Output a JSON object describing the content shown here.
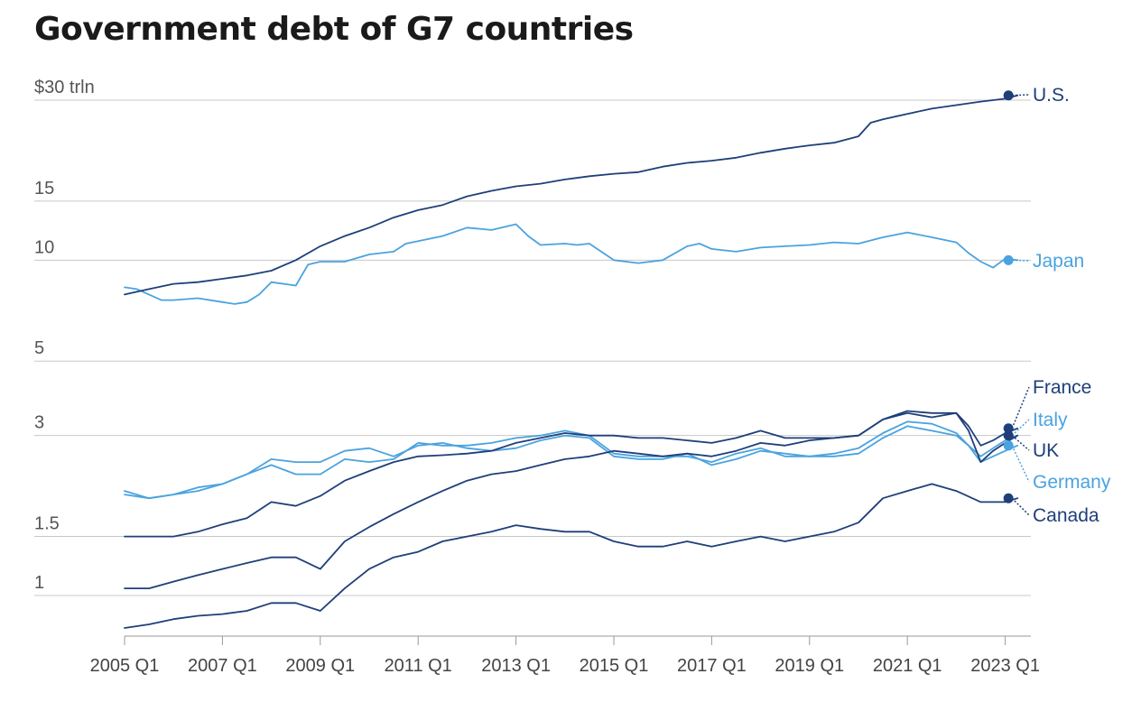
{
  "title": "Government debt of G7 countries",
  "colors": {
    "dark": "#1f3f7a",
    "light": "#4aa3df",
    "grid": "#c8c8c8",
    "text": "#1a1a1a"
  },
  "chart_data": {
    "type": "line",
    "title": "Government debt of G7 countries",
    "xlabel": "",
    "ylabel": "",
    "yscale": "log",
    "unit": "$ trillion",
    "ylim": [
      0.8,
      30.5
    ],
    "y_ticks": [
      {
        "value": 30,
        "label": "$30 trln"
      },
      {
        "value": 15,
        "label": "15"
      },
      {
        "value": 10,
        "label": "10"
      },
      {
        "value": 5,
        "label": "5"
      },
      {
        "value": 3,
        "label": "3"
      },
      {
        "value": 1.5,
        "label": "1.5"
      },
      {
        "value": 1,
        "label": "1"
      }
    ],
    "x_ticks": [
      "2005 Q1",
      "2007 Q1",
      "2009 Q1",
      "2011 Q1",
      "2013 Q1",
      "2015 Q1",
      "2017 Q1",
      "2019 Q1",
      "2021 Q1",
      "2023 Q1"
    ],
    "x_start_year": 2005,
    "series": [
      {
        "name": "U.S.",
        "color": "#1f3f7a",
        "points": [
          [
            2005.0,
            7.9
          ],
          [
            2005.5,
            8.2
          ],
          [
            2006.0,
            8.5
          ],
          [
            2006.5,
            8.6
          ],
          [
            2007.0,
            8.8
          ],
          [
            2007.5,
            9.0
          ],
          [
            2008.0,
            9.3
          ],
          [
            2008.5,
            10.0
          ],
          [
            2009.0,
            11.0
          ],
          [
            2009.5,
            11.8
          ],
          [
            2010.0,
            12.5
          ],
          [
            2010.5,
            13.4
          ],
          [
            2011.0,
            14.1
          ],
          [
            2011.5,
            14.6
          ],
          [
            2012.0,
            15.5
          ],
          [
            2012.5,
            16.1
          ],
          [
            2013.0,
            16.6
          ],
          [
            2013.5,
            16.9
          ],
          [
            2014.0,
            17.4
          ],
          [
            2014.5,
            17.8
          ],
          [
            2015.0,
            18.1
          ],
          [
            2015.5,
            18.3
          ],
          [
            2016.0,
            19.0
          ],
          [
            2016.5,
            19.5
          ],
          [
            2017.0,
            19.8
          ],
          [
            2017.5,
            20.2
          ],
          [
            2018.0,
            20.9
          ],
          [
            2018.5,
            21.5
          ],
          [
            2019.0,
            22.0
          ],
          [
            2019.5,
            22.4
          ],
          [
            2020.0,
            23.4
          ],
          [
            2020.25,
            25.7
          ],
          [
            2020.5,
            26.3
          ],
          [
            2021.0,
            27.3
          ],
          [
            2021.5,
            28.3
          ],
          [
            2022.0,
            29.0
          ],
          [
            2022.5,
            29.7
          ],
          [
            2023.0,
            30.3
          ],
          [
            2023.25,
            31.0
          ]
        ]
      },
      {
        "name": "Japan",
        "color": "#4aa3df",
        "points": [
          [
            2005.0,
            8.3
          ],
          [
            2005.25,
            8.2
          ],
          [
            2005.75,
            7.6
          ],
          [
            2006.0,
            7.6
          ],
          [
            2006.5,
            7.7
          ],
          [
            2007.0,
            7.5
          ],
          [
            2007.25,
            7.4
          ],
          [
            2007.5,
            7.5
          ],
          [
            2007.75,
            7.9
          ],
          [
            2008.0,
            8.6
          ],
          [
            2008.5,
            8.4
          ],
          [
            2008.75,
            9.7
          ],
          [
            2009.0,
            9.9
          ],
          [
            2009.5,
            9.9
          ],
          [
            2010.0,
            10.4
          ],
          [
            2010.5,
            10.6
          ],
          [
            2010.75,
            11.2
          ],
          [
            2011.0,
            11.4
          ],
          [
            2011.5,
            11.8
          ],
          [
            2012.0,
            12.5
          ],
          [
            2012.5,
            12.3
          ],
          [
            2013.0,
            12.8
          ],
          [
            2013.25,
            11.8
          ],
          [
            2013.5,
            11.1
          ],
          [
            2014.0,
            11.2
          ],
          [
            2014.25,
            11.1
          ],
          [
            2014.5,
            11.2
          ],
          [
            2015.0,
            10.0
          ],
          [
            2015.5,
            9.8
          ],
          [
            2016.0,
            10.0
          ],
          [
            2016.5,
            11.0
          ],
          [
            2016.75,
            11.2
          ],
          [
            2017.0,
            10.8
          ],
          [
            2017.5,
            10.6
          ],
          [
            2018.0,
            10.9
          ],
          [
            2018.5,
            11.0
          ],
          [
            2019.0,
            11.1
          ],
          [
            2019.5,
            11.3
          ],
          [
            2020.0,
            11.2
          ],
          [
            2020.5,
            11.7
          ],
          [
            2021.0,
            12.1
          ],
          [
            2021.5,
            11.7
          ],
          [
            2022.0,
            11.3
          ],
          [
            2022.25,
            10.5
          ],
          [
            2022.5,
            9.9
          ],
          [
            2022.75,
            9.5
          ],
          [
            2023.0,
            10.1
          ],
          [
            2023.25,
            10.0
          ]
        ]
      },
      {
        "name": "France",
        "color": "#1f3f7a",
        "points": [
          [
            2005.0,
            1.5
          ],
          [
            2005.5,
            1.5
          ],
          [
            2006.0,
            1.5
          ],
          [
            2006.5,
            1.55
          ],
          [
            2007.0,
            1.63
          ],
          [
            2007.5,
            1.7
          ],
          [
            2008.0,
            1.9
          ],
          [
            2008.5,
            1.85
          ],
          [
            2009.0,
            1.98
          ],
          [
            2009.5,
            2.2
          ],
          [
            2010.0,
            2.35
          ],
          [
            2010.5,
            2.5
          ],
          [
            2011.0,
            2.6
          ],
          [
            2011.5,
            2.62
          ],
          [
            2012.0,
            2.65
          ],
          [
            2012.5,
            2.7
          ],
          [
            2013.0,
            2.85
          ],
          [
            2013.5,
            2.95
          ],
          [
            2014.0,
            3.05
          ],
          [
            2014.5,
            3.0
          ],
          [
            2015.0,
            3.0
          ],
          [
            2015.5,
            2.95
          ],
          [
            2016.0,
            2.95
          ],
          [
            2016.5,
            2.9
          ],
          [
            2017.0,
            2.85
          ],
          [
            2017.5,
            2.95
          ],
          [
            2018.0,
            3.1
          ],
          [
            2018.5,
            2.95
          ],
          [
            2019.0,
            2.95
          ],
          [
            2019.5,
            2.95
          ],
          [
            2020.0,
            3.0
          ],
          [
            2020.5,
            3.35
          ],
          [
            2021.0,
            3.5
          ],
          [
            2021.5,
            3.4
          ],
          [
            2022.0,
            3.5
          ],
          [
            2022.25,
            3.2
          ],
          [
            2022.5,
            2.8
          ],
          [
            2022.75,
            2.9
          ],
          [
            2023.0,
            3.05
          ],
          [
            2023.25,
            3.15
          ]
        ]
      },
      {
        "name": "Italy",
        "color": "#4aa3df",
        "points": [
          [
            2005.0,
            2.05
          ],
          [
            2005.5,
            1.95
          ],
          [
            2006.0,
            2.0
          ],
          [
            2006.5,
            2.05
          ],
          [
            2007.0,
            2.15
          ],
          [
            2007.5,
            2.3
          ],
          [
            2008.0,
            2.45
          ],
          [
            2008.5,
            2.3
          ],
          [
            2009.0,
            2.3
          ],
          [
            2009.5,
            2.55
          ],
          [
            2010.0,
            2.5
          ],
          [
            2010.5,
            2.55
          ],
          [
            2011.0,
            2.85
          ],
          [
            2011.5,
            2.8
          ],
          [
            2012.0,
            2.8
          ],
          [
            2012.5,
            2.85
          ],
          [
            2013.0,
            2.95
          ],
          [
            2013.5,
            3.0
          ],
          [
            2014.0,
            3.1
          ],
          [
            2014.5,
            3.0
          ],
          [
            2015.0,
            2.65
          ],
          [
            2015.5,
            2.6
          ],
          [
            2016.0,
            2.6
          ],
          [
            2016.5,
            2.6
          ],
          [
            2017.0,
            2.5
          ],
          [
            2017.5,
            2.65
          ],
          [
            2018.0,
            2.75
          ],
          [
            2018.5,
            2.6
          ],
          [
            2019.0,
            2.6
          ],
          [
            2019.5,
            2.65
          ],
          [
            2020.0,
            2.75
          ],
          [
            2020.5,
            3.05
          ],
          [
            2021.0,
            3.3
          ],
          [
            2021.5,
            3.25
          ],
          [
            2022.0,
            3.05
          ],
          [
            2022.25,
            2.8
          ],
          [
            2022.5,
            2.6
          ],
          [
            2022.75,
            2.75
          ],
          [
            2023.0,
            2.9
          ],
          [
            2023.25,
            3.0
          ]
        ]
      },
      {
        "name": "UK",
        "color": "#1f3f7a",
        "points": [
          [
            2005.0,
            1.05
          ],
          [
            2005.5,
            1.05
          ],
          [
            2006.0,
            1.1
          ],
          [
            2006.5,
            1.15
          ],
          [
            2007.0,
            1.2
          ],
          [
            2007.5,
            1.25
          ],
          [
            2008.0,
            1.3
          ],
          [
            2008.5,
            1.3
          ],
          [
            2009.0,
            1.2
          ],
          [
            2009.5,
            1.45
          ],
          [
            2010.0,
            1.6
          ],
          [
            2010.5,
            1.75
          ],
          [
            2011.0,
            1.9
          ],
          [
            2011.5,
            2.05
          ],
          [
            2012.0,
            2.2
          ],
          [
            2012.5,
            2.3
          ],
          [
            2013.0,
            2.35
          ],
          [
            2013.5,
            2.45
          ],
          [
            2014.0,
            2.55
          ],
          [
            2014.5,
            2.6
          ],
          [
            2015.0,
            2.7
          ],
          [
            2015.5,
            2.65
          ],
          [
            2016.0,
            2.6
          ],
          [
            2016.5,
            2.65
          ],
          [
            2017.0,
            2.6
          ],
          [
            2017.5,
            2.7
          ],
          [
            2018.0,
            2.85
          ],
          [
            2018.5,
            2.8
          ],
          [
            2019.0,
            2.9
          ],
          [
            2019.5,
            2.95
          ],
          [
            2020.0,
            3.0
          ],
          [
            2020.5,
            3.35
          ],
          [
            2021.0,
            3.55
          ],
          [
            2021.5,
            3.5
          ],
          [
            2022.0,
            3.5
          ],
          [
            2022.25,
            3.1
          ],
          [
            2022.5,
            2.5
          ],
          [
            2022.75,
            2.7
          ],
          [
            2023.0,
            2.85
          ],
          [
            2023.25,
            3.0
          ]
        ]
      },
      {
        "name": "Germany",
        "color": "#4aa3df",
        "points": [
          [
            2005.0,
            2.0
          ],
          [
            2005.5,
            1.95
          ],
          [
            2006.0,
            2.0
          ],
          [
            2006.5,
            2.1
          ],
          [
            2007.0,
            2.15
          ],
          [
            2007.5,
            2.3
          ],
          [
            2008.0,
            2.55
          ],
          [
            2008.5,
            2.5
          ],
          [
            2009.0,
            2.5
          ],
          [
            2009.5,
            2.7
          ],
          [
            2010.0,
            2.75
          ],
          [
            2010.5,
            2.6
          ],
          [
            2011.0,
            2.8
          ],
          [
            2011.5,
            2.85
          ],
          [
            2012.0,
            2.75
          ],
          [
            2012.5,
            2.7
          ],
          [
            2013.0,
            2.75
          ],
          [
            2013.5,
            2.9
          ],
          [
            2014.0,
            3.0
          ],
          [
            2014.5,
            2.95
          ],
          [
            2015.0,
            2.6
          ],
          [
            2015.5,
            2.55
          ],
          [
            2016.0,
            2.55
          ],
          [
            2016.5,
            2.65
          ],
          [
            2017.0,
            2.45
          ],
          [
            2017.5,
            2.55
          ],
          [
            2018.0,
            2.7
          ],
          [
            2018.5,
            2.65
          ],
          [
            2019.0,
            2.6
          ],
          [
            2019.5,
            2.6
          ],
          [
            2020.0,
            2.65
          ],
          [
            2020.5,
            2.95
          ],
          [
            2021.0,
            3.2
          ],
          [
            2021.5,
            3.1
          ],
          [
            2022.0,
            3.0
          ],
          [
            2022.25,
            2.8
          ],
          [
            2022.5,
            2.5
          ],
          [
            2022.75,
            2.6
          ],
          [
            2023.0,
            2.7
          ],
          [
            2023.25,
            2.8
          ]
        ]
      },
      {
        "name": "Canada",
        "color": "#1f3f7a",
        "points": [
          [
            2005.0,
            0.8
          ],
          [
            2005.5,
            0.82
          ],
          [
            2006.0,
            0.85
          ],
          [
            2006.5,
            0.87
          ],
          [
            2007.0,
            0.88
          ],
          [
            2007.5,
            0.9
          ],
          [
            2008.0,
            0.95
          ],
          [
            2008.5,
            0.95
          ],
          [
            2009.0,
            0.9
          ],
          [
            2009.5,
            1.05
          ],
          [
            2010.0,
            1.2
          ],
          [
            2010.5,
            1.3
          ],
          [
            2011.0,
            1.35
          ],
          [
            2011.5,
            1.45
          ],
          [
            2012.0,
            1.5
          ],
          [
            2012.5,
            1.55
          ],
          [
            2013.0,
            1.62
          ],
          [
            2013.5,
            1.58
          ],
          [
            2014.0,
            1.55
          ],
          [
            2014.5,
            1.55
          ],
          [
            2015.0,
            1.45
          ],
          [
            2015.5,
            1.4
          ],
          [
            2016.0,
            1.4
          ],
          [
            2016.5,
            1.45
          ],
          [
            2017.0,
            1.4
          ],
          [
            2017.5,
            1.45
          ],
          [
            2018.0,
            1.5
          ],
          [
            2018.5,
            1.45
          ],
          [
            2019.0,
            1.5
          ],
          [
            2019.5,
            1.55
          ],
          [
            2020.0,
            1.65
          ],
          [
            2020.5,
            1.95
          ],
          [
            2021.0,
            2.05
          ],
          [
            2021.5,
            2.15
          ],
          [
            2022.0,
            2.05
          ],
          [
            2022.5,
            1.9
          ],
          [
            2023.0,
            1.9
          ],
          [
            2023.25,
            1.95
          ]
        ]
      }
    ],
    "end_labels": [
      "U.S.",
      "Japan",
      "France",
      "Italy",
      "UK",
      "Germany",
      "Canada"
    ]
  }
}
